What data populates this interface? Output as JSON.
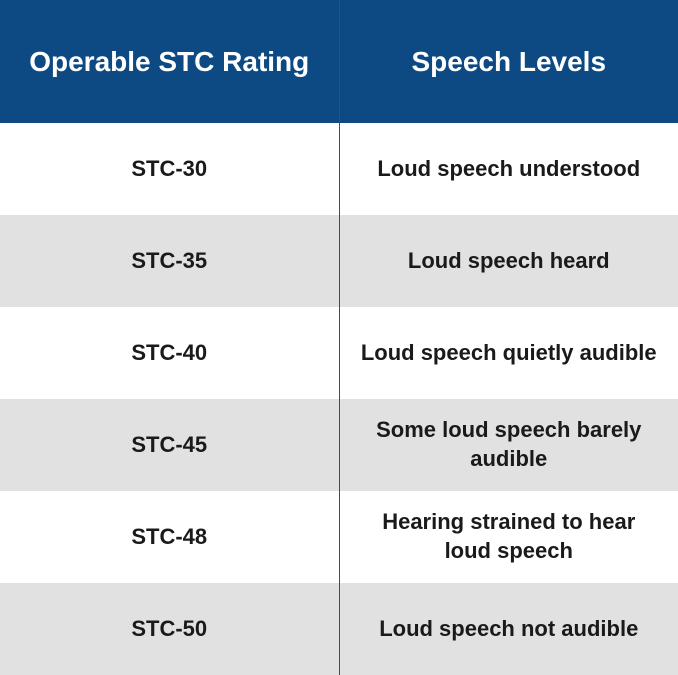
{
  "type": "table",
  "columns": [
    {
      "label": "Operable STC Rating"
    },
    {
      "label": "Speech Levels"
    }
  ],
  "rows": [
    {
      "rating": "STC-30",
      "level": "Loud speech understood"
    },
    {
      "rating": "STC-35",
      "level": "Loud speech heard"
    },
    {
      "rating": "STC-40",
      "level": "Loud speech quietly audible"
    },
    {
      "rating": "STC-45",
      "level": "Some loud speech barely audible"
    },
    {
      "rating": "STC-48",
      "level": "Hearing strained to hear loud speech"
    },
    {
      "rating": "STC-50",
      "level": "Loud speech not audible"
    }
  ],
  "header_bg_color": "#0d4a84",
  "header_text_color": "#ffffff",
  "row_odd_bg": "#ffffff",
  "row_even_bg": "#e1e1e1",
  "divider_color": "#4a4a4a",
  "header_fontsize": 28,
  "cell_fontsize": 22,
  "text_color": "#1a1a1a"
}
